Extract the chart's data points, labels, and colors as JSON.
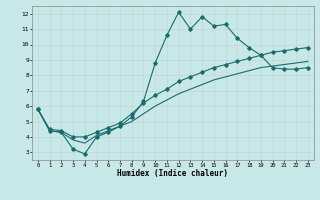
{
  "title": "",
  "xlabel": "Humidex (Indice chaleur)",
  "background_color": "#c8e8e8",
  "grid_color": "#c0d8d8",
  "line_color": "#1a6b6b",
  "xlim": [
    -0.5,
    23.5
  ],
  "ylim": [
    2.5,
    12.5
  ],
  "xticks": [
    0,
    1,
    2,
    3,
    4,
    5,
    6,
    7,
    8,
    9,
    10,
    11,
    12,
    13,
    14,
    15,
    16,
    17,
    18,
    19,
    20,
    21,
    22,
    23
  ],
  "yticks": [
    3,
    4,
    5,
    6,
    7,
    8,
    9,
    10,
    11,
    12
  ],
  "line1_x": [
    0,
    1,
    2,
    3,
    4,
    5,
    6,
    7,
    8,
    9,
    10,
    11,
    12,
    13,
    14,
    15,
    16,
    17,
    18,
    19,
    20,
    21,
    22,
    23
  ],
  "line1_y": [
    5.8,
    4.4,
    4.3,
    3.2,
    2.9,
    4.0,
    4.3,
    4.7,
    5.3,
    6.3,
    8.8,
    10.6,
    12.1,
    11.0,
    11.8,
    11.2,
    11.3,
    10.4,
    9.8,
    9.3,
    8.5,
    8.4,
    8.4,
    8.5
  ],
  "line2_x": [
    0,
    1,
    2,
    3,
    4,
    5,
    6,
    7,
    8,
    9,
    10,
    11,
    12,
    13,
    14,
    15,
    16,
    17,
    18,
    19,
    20,
    21,
    22,
    23
  ],
  "line2_y": [
    5.8,
    4.5,
    4.4,
    4.0,
    4.0,
    4.3,
    4.6,
    4.9,
    5.5,
    6.2,
    6.7,
    7.1,
    7.6,
    7.9,
    8.2,
    8.5,
    8.7,
    8.9,
    9.1,
    9.3,
    9.5,
    9.6,
    9.7,
    9.8
  ],
  "line3_x": [
    0,
    1,
    2,
    3,
    4,
    5,
    6,
    7,
    8,
    9,
    10,
    11,
    12,
    13,
    14,
    15,
    16,
    17,
    18,
    19,
    20,
    21,
    22,
    23
  ],
  "line3_y": [
    5.8,
    4.4,
    4.3,
    3.8,
    3.6,
    4.1,
    4.4,
    4.7,
    5.0,
    5.5,
    6.0,
    6.4,
    6.8,
    7.1,
    7.4,
    7.7,
    7.9,
    8.1,
    8.3,
    8.5,
    8.6,
    8.7,
    8.8,
    8.9
  ]
}
